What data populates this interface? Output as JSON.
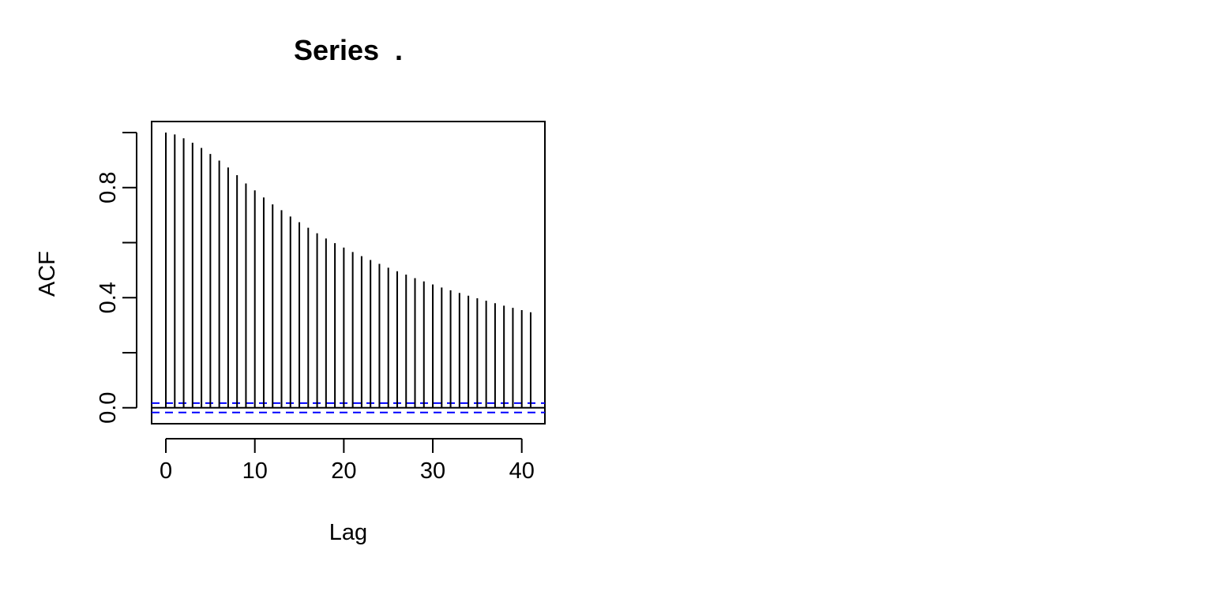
{
  "chart_data": {
    "type": "bar",
    "title": "Series  .",
    "xlabel": "Lag",
    "ylabel": "ACF",
    "x": [
      0,
      1,
      2,
      3,
      4,
      5,
      6,
      7,
      8,
      9,
      10,
      11,
      12,
      13,
      14,
      15,
      16,
      17,
      18,
      19,
      20,
      21,
      22,
      23,
      24,
      25,
      26,
      27,
      28,
      29,
      30,
      31,
      32,
      33,
      34,
      35,
      36,
      37,
      38,
      39,
      40,
      41
    ],
    "values": [
      1.0,
      0.993,
      0.979,
      0.963,
      0.944,
      0.922,
      0.898,
      0.873,
      0.845,
      0.815,
      0.79,
      0.764,
      0.739,
      0.718,
      0.695,
      0.674,
      0.654,
      0.634,
      0.615,
      0.598,
      0.582,
      0.566,
      0.551,
      0.537,
      0.523,
      0.509,
      0.496,
      0.484,
      0.471,
      0.459,
      0.448,
      0.437,
      0.427,
      0.417,
      0.407,
      0.398,
      0.389,
      0.38,
      0.371,
      0.363,
      0.355,
      0.347
    ],
    "conf_bound": 0.017,
    "xlim": [
      -1.6,
      42.6
    ],
    "ylim": [
      -0.058,
      1.04
    ],
    "x_ticks": [
      0,
      10,
      20,
      30,
      40
    ],
    "x_tick_labels": [
      "0",
      "10",
      "20",
      "30",
      "40"
    ],
    "y_ticks": [
      0.0,
      0.2,
      0.4,
      0.6,
      0.8,
      1.0
    ],
    "y_tick_labels": [
      "0.0",
      "",
      "0.4",
      "",
      "0.8",
      ""
    ],
    "colors": {
      "bars": "#000000",
      "zero_line": "#000000",
      "conf_lines": "#0000ff"
    },
    "grid": false
  }
}
